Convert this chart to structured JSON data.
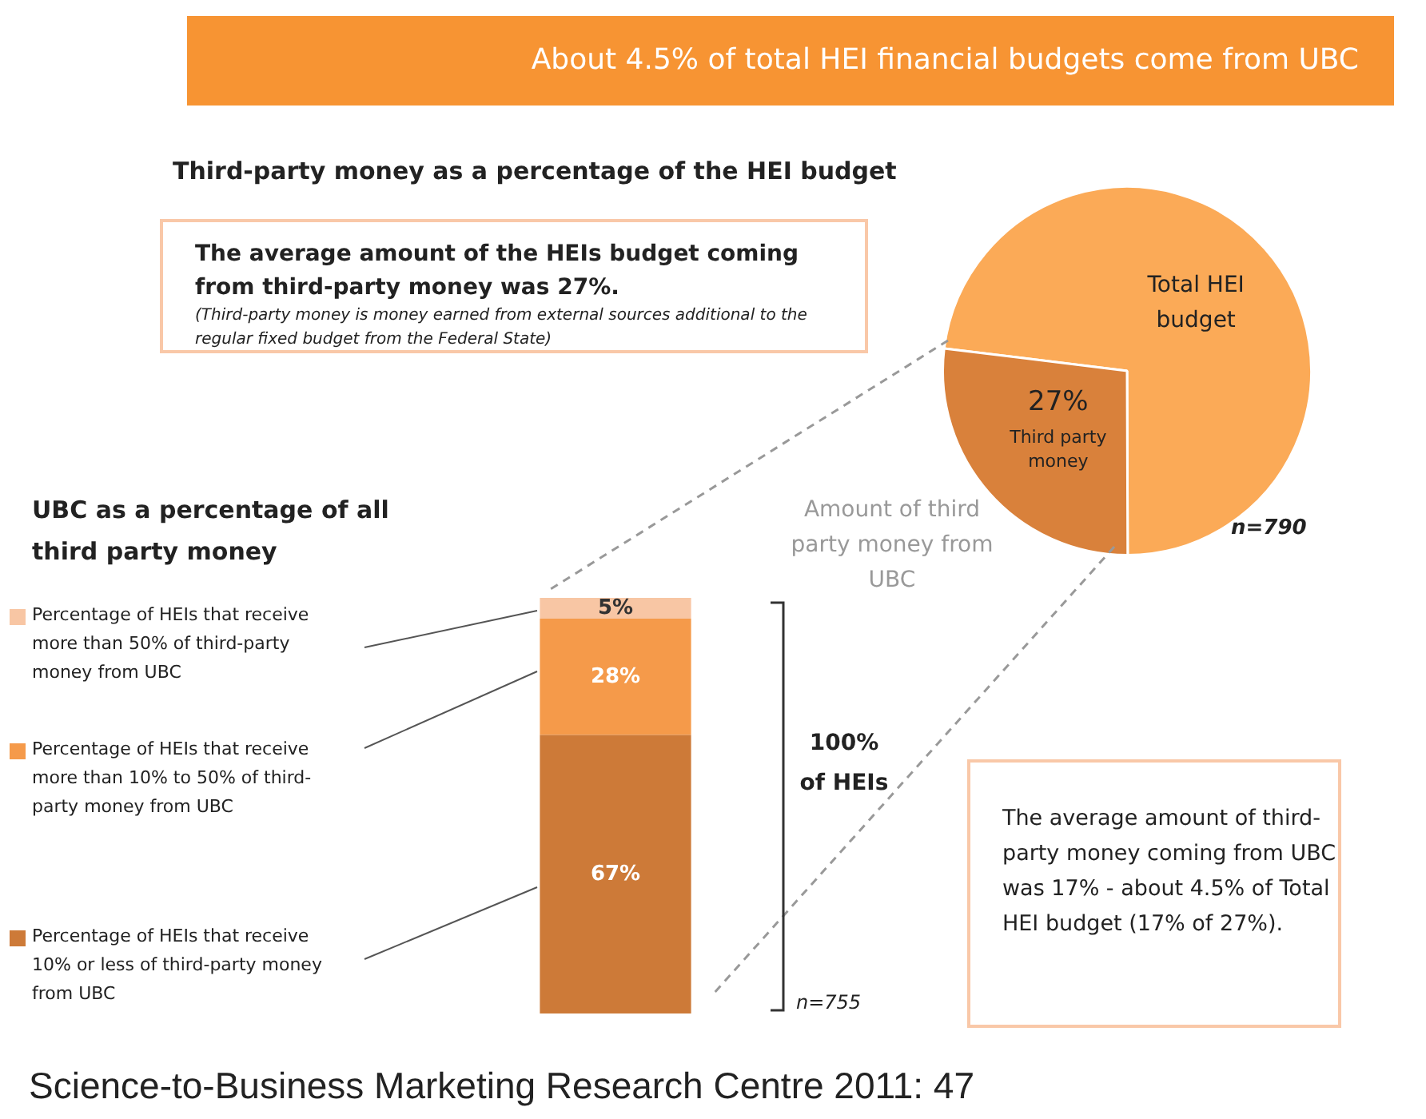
{
  "chart_data": [
    {
      "type": "pie",
      "title": "About 4.5% of total HEI financial budgets come from UBC",
      "subtitle": "Third-party money as a percentage of the HEI budget",
      "categories": [
        "Total HEI budget",
        "Third party money"
      ],
      "values": [
        73,
        27
      ],
      "colors": [
        "#fbaa57",
        "#d9813b"
      ],
      "value_labels": [
        null,
        "27%"
      ],
      "legend": false,
      "annotations": [
        "The average amount of the HEIs budget coming from third-party money was 27%.",
        "(Third-party money is money earned from external sources additional to the regular fixed budget from the Federal State)",
        "n=790"
      ]
    },
    {
      "type": "bar",
      "stacked": true,
      "legend_title": "UBC as a percentage of all third party money",
      "categories": [
        null
      ],
      "legend": "left",
      "series": [
        {
          "name": "Percentage of HEIs that receive 10% or less of third-party money from UBC",
          "color": "#cd7a38",
          "values": [
            67
          ],
          "value_labels": [
            "67%"
          ]
        },
        {
          "name": "Percentage of HEIs that receive more than 10% to 50% of third-party money from UBC",
          "color": "#f59a4a",
          "values": [
            28
          ],
          "value_labels": [
            "28%"
          ]
        },
        {
          "name": "Percentage of HEIs that receive more than 50% of third-party money from UBC",
          "color": "#f8c6a4",
          "values": [
            5
          ],
          "value_labels": [
            "5%"
          ]
        }
      ],
      "annotations": [
        "Amount of third party money from UBC",
        "100% of HEIs",
        "n=755",
        "The average amount of third-party money coming from UBC was 17% - about 4.5% of Total HEI budget (17% of 27%).",
        "Science-to-Business Marketing Research Centre 2011: 47"
      ]
    }
  ]
}
